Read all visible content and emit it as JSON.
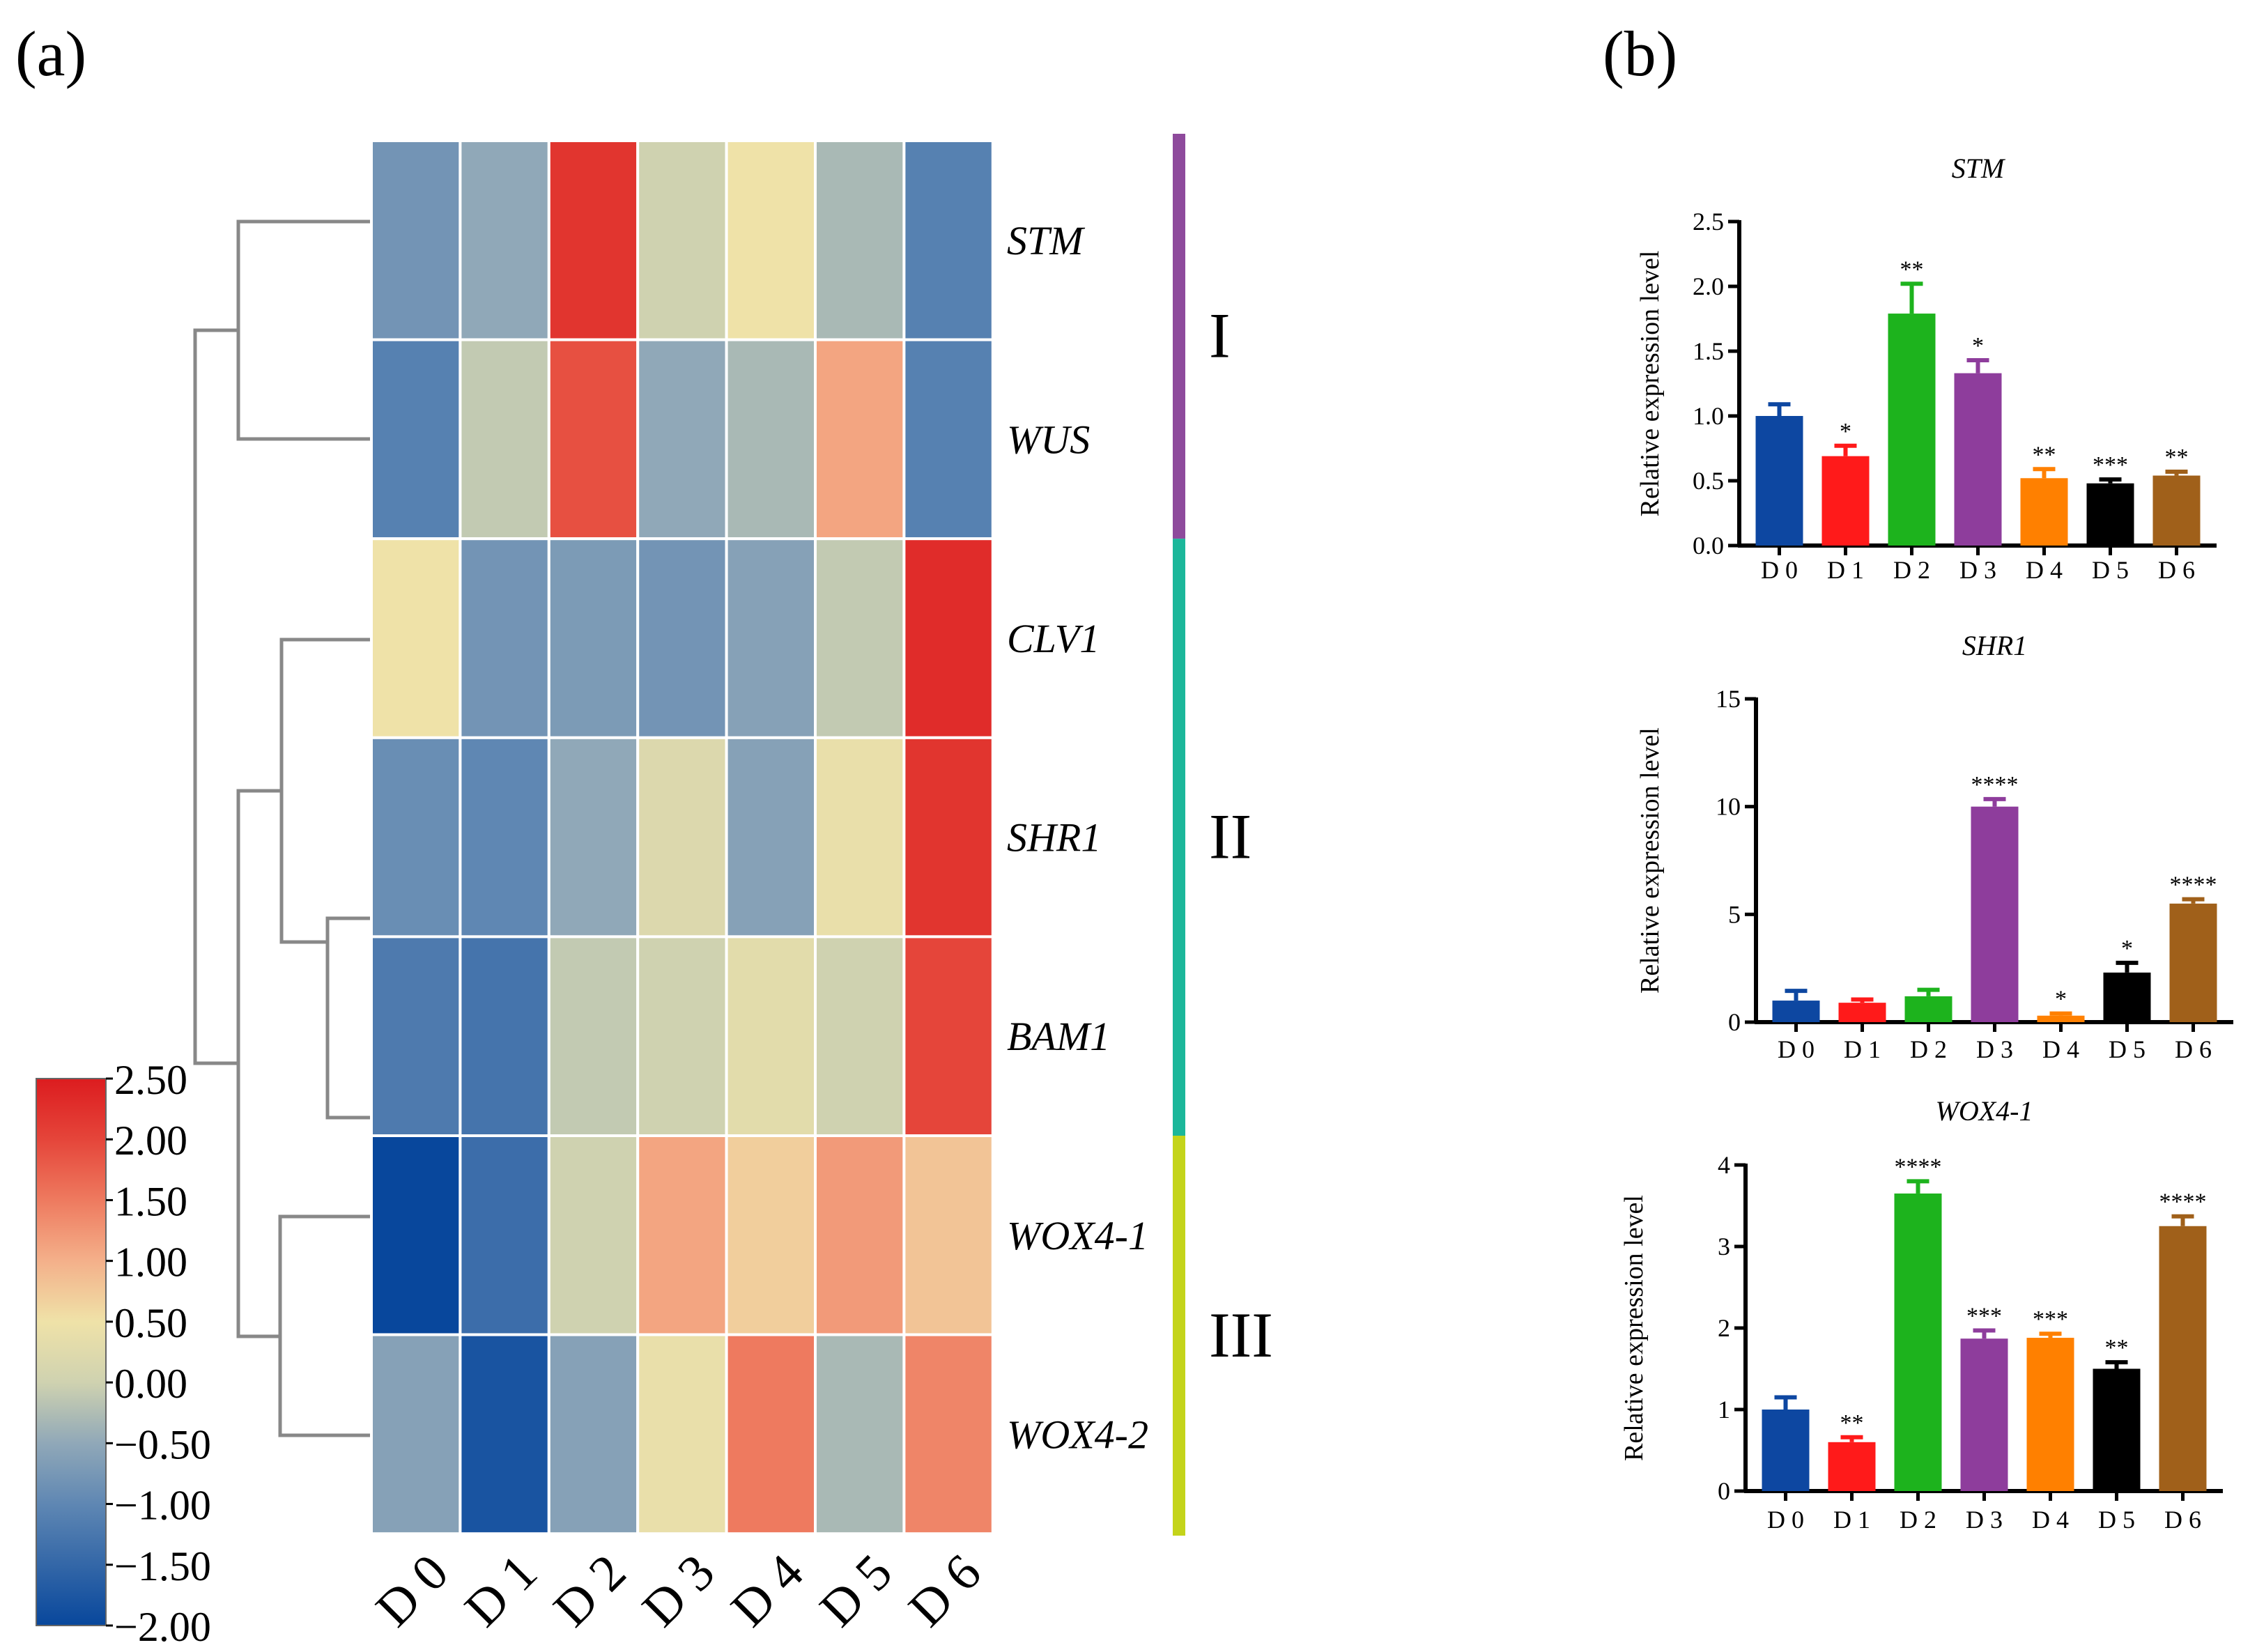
{
  "panel_a": {
    "label": "(a)",
    "columns": [
      "D 0",
      "D 1",
      "D 2",
      "D 3",
      "D 4",
      "D 5",
      "D 6"
    ],
    "rows": [
      "STM",
      "WUS",
      "CLV1",
      "SHR1",
      "BAM1",
      "WOX4-1",
      "WOX4-2"
    ],
    "clusters": [
      {
        "label": "I",
        "color": "#8e4a9c",
        "rows": [
          0,
          1
        ]
      },
      {
        "label": "II",
        "color": "#1bb79a",
        "rows": [
          2,
          3,
          4
        ]
      },
      {
        "label": "III",
        "color": "#c4d41a",
        "rows": [
          5,
          6
        ]
      }
    ],
    "colorbar_ticks": [
      "2.50",
      "2.00",
      "1.50",
      "1.00",
      "0.50",
      "0.00",
      "−0.50",
      "−1.00",
      "−1.50",
      "−2.00"
    ]
  },
  "panel_b": {
    "label": "(b)"
  },
  "chart_data": [
    {
      "type": "heatmap",
      "x": [
        "D 0",
        "D 1",
        "D 2",
        "D 3",
        "D 4",
        "D 5",
        "D 6"
      ],
      "y": [
        "STM",
        "WUS",
        "CLV1",
        "SHR1",
        "BAM1",
        "WOX4-1",
        "WOX4-2"
      ],
      "values": [
        [
          -0.8,
          -0.5,
          2.2,
          0.0,
          0.5,
          -0.3,
          -1.1
        ],
        [
          -1.1,
          -0.1,
          1.9,
          -0.5,
          -0.3,
          1.1,
          -1.1
        ],
        [
          0.5,
          -0.8,
          -0.7,
          -0.8,
          -0.6,
          -0.1,
          2.3
        ],
        [
          -0.9,
          -1.0,
          -0.5,
          0.2,
          -0.6,
          0.4,
          2.2
        ],
        [
          -1.2,
          -1.3,
          -0.1,
          0.0,
          0.3,
          0.0,
          2.0
        ],
        [
          -2.0,
          -1.4,
          0.0,
          1.1,
          0.7,
          1.2,
          0.8
        ],
        [
          -0.6,
          -1.8,
          -0.6,
          0.4,
          1.5,
          -0.3,
          1.4
        ]
      ],
      "colorbar": {
        "min": -2.0,
        "max": 2.5
      }
    },
    {
      "type": "bar",
      "title": "STM",
      "categories": [
        "D 0",
        "D 1",
        "D 2",
        "D 3",
        "D 4",
        "D 5",
        "D 6"
      ],
      "values": [
        1.0,
        0.69,
        1.79,
        1.33,
        0.52,
        0.48,
        0.54
      ],
      "errors": [
        0.09,
        0.08,
        0.23,
        0.1,
        0.07,
        0.03,
        0.03
      ],
      "significance": [
        "",
        "*",
        "**",
        "*",
        "**",
        "***",
        "**"
      ],
      "colors": [
        "#0d47a1",
        "#ff1a1a",
        "#1db31d",
        "#8e3d9c",
        "#ff8000",
        "#000000",
        "#a0601a"
      ],
      "ylabel": "Relative expression level",
      "ylim": [
        0,
        2.5
      ],
      "yticks": [
        "0.0",
        "0.5",
        "1.0",
        "1.5",
        "2.0",
        "2.5"
      ]
    },
    {
      "type": "bar",
      "title": "SHR1",
      "categories": [
        "D 0",
        "D 1",
        "D 2",
        "D 3",
        "D 4",
        "D 5",
        "D 6"
      ],
      "values": [
        1.0,
        0.9,
        1.2,
        10.0,
        0.3,
        2.3,
        5.5
      ],
      "errors": [
        0.45,
        0.15,
        0.3,
        0.35,
        0.1,
        0.45,
        0.2
      ],
      "significance": [
        "",
        "",
        "",
        "****",
        "*",
        "*",
        "****"
      ],
      "colors": [
        "#0d47a1",
        "#ff1a1a",
        "#1db31d",
        "#8e3d9c",
        "#ff8000",
        "#000000",
        "#a0601a"
      ],
      "ylabel": "Relative expression level",
      "ylim": [
        0,
        15
      ],
      "yticks": [
        "0",
        "5",
        "10",
        "15"
      ]
    },
    {
      "type": "bar",
      "title": "WOX4-1",
      "categories": [
        "D 0",
        "D 1",
        "D 2",
        "D 3",
        "D 4",
        "D 5",
        "D 6"
      ],
      "values": [
        1.0,
        0.6,
        3.65,
        1.87,
        1.88,
        1.5,
        3.25
      ],
      "errors": [
        0.15,
        0.06,
        0.15,
        0.1,
        0.05,
        0.08,
        0.12
      ],
      "significance": [
        "",
        "**",
        "****",
        "***",
        "***",
        "**",
        "****"
      ],
      "colors": [
        "#0d47a1",
        "#ff1a1a",
        "#1db31d",
        "#8e3d9c",
        "#ff8000",
        "#000000",
        "#a0601a"
      ],
      "ylabel": "Relative expression level",
      "ylim": [
        0,
        4
      ],
      "yticks": [
        "0",
        "1",
        "2",
        "3",
        "4"
      ]
    }
  ]
}
